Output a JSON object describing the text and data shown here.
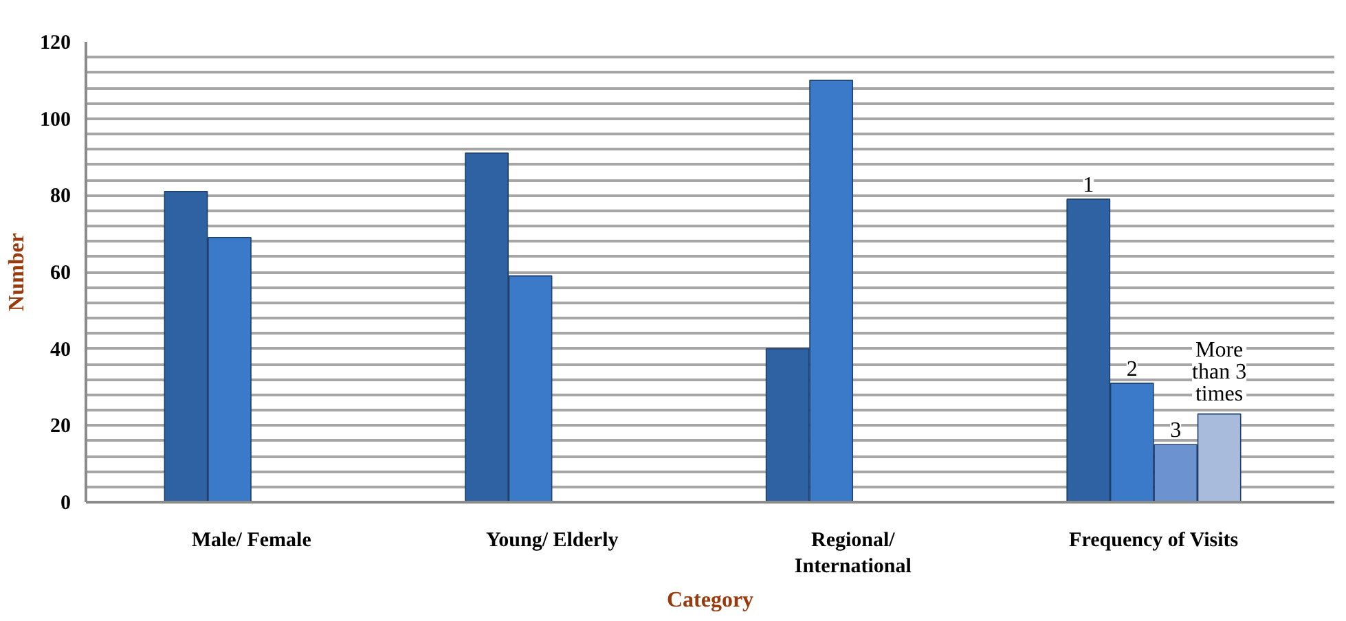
{
  "chart_data": {
    "type": "bar",
    "xlabel": "Category",
    "ylabel": "Number",
    "categories": [
      "Male/ Female",
      "Young/ Elderly",
      "Regional/ International",
      "Frequency of Visits"
    ],
    "series": [
      {
        "name": "1",
        "color": "#2f62a3",
        "values": [
          81,
          91,
          40,
          79
        ]
      },
      {
        "name": "2",
        "color": "#3b79c9",
        "values": [
          69,
          59,
          110,
          31
        ]
      },
      {
        "name": "3",
        "color": "#6c93cf",
        "values": [
          null,
          null,
          null,
          15
        ]
      },
      {
        "name": "More than 3 times",
        "color": "#a8bbdc",
        "values": [
          null,
          null,
          null,
          23
        ]
      }
    ],
    "ylim": [
      0,
      120
    ],
    "yticks": [
      0,
      {
        "value": 4,
        "label": null
      },
      {
        "value": 8,
        "label": null
      },
      {
        "value": 12,
        "label": null
      },
      {
        "value": 16,
        "label": null
      },
      20,
      {
        "value": 24,
        "label": null
      },
      {
        "value": 28,
        "label": null
      },
      {
        "value": 32,
        "label": null
      },
      {
        "value": 36,
        "label": null
      },
      40,
      {
        "value": 44,
        "label": null
      },
      {
        "value": 48,
        "label": null
      },
      {
        "value": 52,
        "label": null
      },
      {
        "value": 56,
        "label": null
      },
      60,
      {
        "value": 64,
        "label": null
      },
      {
        "value": 68,
        "label": null
      },
      {
        "value": 72,
        "label": null
      },
      {
        "value": 76,
        "label": null
      },
      80,
      {
        "value": 84,
        "label": null
      },
      {
        "value": 88,
        "label": null
      },
      {
        "value": 92,
        "label": null
      },
      {
        "value": 96,
        "label": null
      },
      100,
      {
        "value": 104,
        "label": null
      },
      {
        "value": 108,
        "label": null
      },
      {
        "value": 112,
        "label": null
      },
      {
        "value": 116,
        "label": null
      },
      120
    ],
    "grid": "y"
  }
}
